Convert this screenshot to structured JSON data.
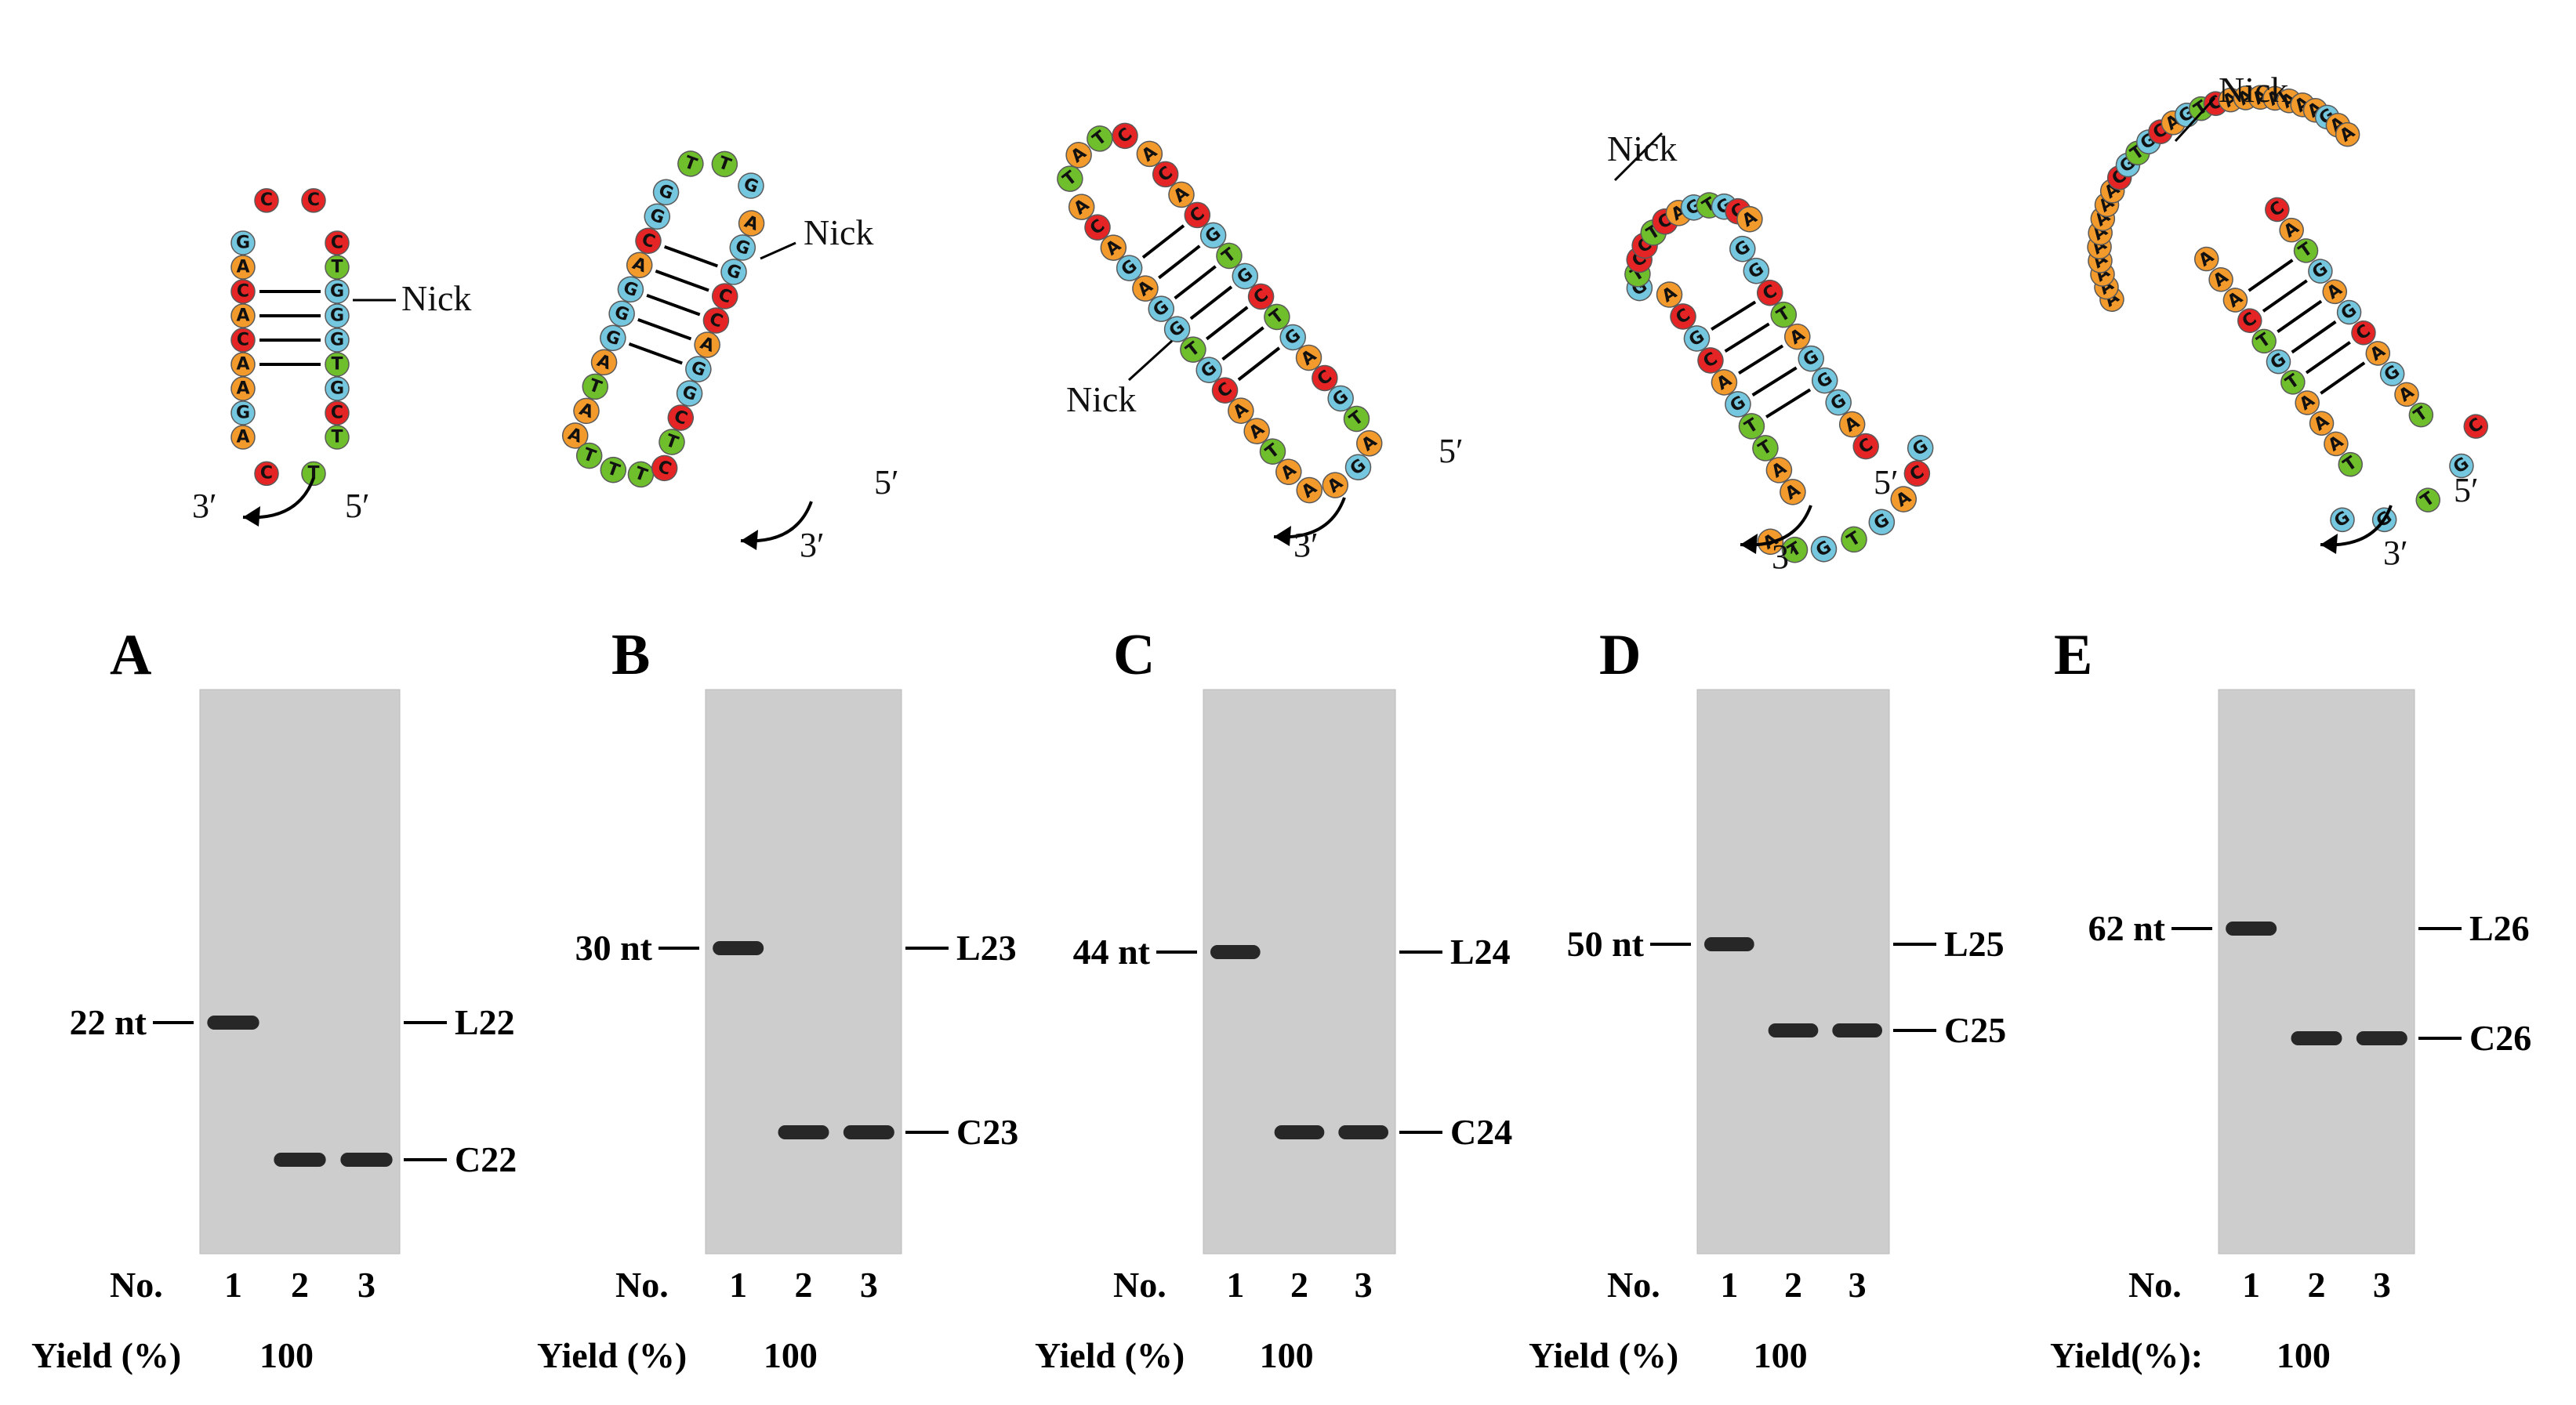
{
  "labels": {
    "nick": "Nick",
    "five_prime": "5′",
    "three_prime": "3′",
    "lane_header": "No.",
    "lanes": [
      "1",
      "2",
      "3"
    ],
    "yield_value": "100"
  },
  "colors": {
    "A": "#f39a2c",
    "C": "#e42425",
    "G": "#74c7de",
    "T": "#6fbf2c",
    "gel_background": "#cdcdcd",
    "band": "#101010"
  },
  "panels": [
    {
      "letter": "A",
      "marker": "22 nt",
      "linear": "L22",
      "circular": "C22",
      "yield_label": "Yield (%)",
      "hairpin": {
        "left_strand": [
          "G",
          "A",
          "C",
          "A",
          "C",
          "A",
          "A",
          "G",
          "A"
        ],
        "right_strand": [
          "C",
          "T",
          "G",
          "G",
          "G",
          "T",
          "G",
          "C",
          "T"
        ],
        "loop": [
          "C",
          "C"
        ],
        "tail": [
          "C",
          "T"
        ]
      }
    },
    {
      "letter": "B",
      "marker": "30 nt",
      "linear": "L23",
      "circular": "C23",
      "yield_label": "Yield (%)",
      "hairpin": {
        "left_strand": [
          "G",
          "G",
          "C",
          "A",
          "G",
          "G",
          "G",
          "A",
          "T",
          "A"
        ],
        "right_strand": [
          "A",
          "G",
          "G",
          "C",
          "C",
          "A",
          "G",
          "G",
          "C",
          "T"
        ],
        "loop": [
          "T",
          "T",
          "G"
        ],
        "tail": [
          "A",
          "T",
          "T",
          "T",
          "C"
        ]
      }
    },
    {
      "letter": "C",
      "marker": "44 nt",
      "linear": "L24",
      "circular": "C24",
      "yield_label": "Yield (%)",
      "hairpin": {
        "left_strand": [
          "A",
          "C",
          "A",
          "G",
          "A",
          "G",
          "G",
          "T",
          "G",
          "C",
          "A",
          "A",
          "T",
          "A"
        ],
        "right_strand": [
          "A",
          "C",
          "A",
          "C",
          "G",
          "T",
          "G",
          "C",
          "T",
          "G",
          "A",
          "C",
          "G",
          "T"
        ],
        "loop": [
          "T",
          "A",
          "T",
          "C"
        ],
        "tail": [
          "A",
          "A",
          "G",
          "A"
        ]
      }
    },
    {
      "letter": "D",
      "marker": "50 nt",
      "linear": "L25",
      "circular": "C25",
      "yield_label": "Yield (%)",
      "hairpin": {
        "left_strand": [
          "A",
          "C",
          "G",
          "C",
          "A",
          "G",
          "T",
          "T",
          "A",
          "A"
        ],
        "right_strand": [
          "G",
          "G",
          "C",
          "T",
          "A",
          "G",
          "G",
          "G",
          "A",
          "C"
        ],
        "loop": [
          "G",
          "T",
          "C",
          "C",
          "T",
          "C",
          "A",
          "G",
          "T",
          "G",
          "C",
          "A"
        ],
        "tail": [
          "A",
          "T",
          "G",
          "T",
          "G",
          "A",
          "C",
          "G"
        ]
      }
    },
    {
      "letter": "E",
      "marker": "62 nt",
      "linear": "L26",
      "circular": "C26",
      "yield_label": "Yield(%):",
      "hairpin": {
        "left_strand": [
          "A",
          "A",
          "A",
          "C",
          "T",
          "G",
          "T",
          "A",
          "A",
          "A",
          "T"
        ],
        "right_strand": [
          "C",
          "A",
          "T",
          "G",
          "A",
          "G",
          "C",
          "A",
          "G",
          "A",
          "T"
        ],
        "loop": [
          "A",
          "A",
          "A",
          "A",
          "A",
          "A",
          "A",
          "A",
          "A",
          "C",
          "G",
          "T",
          "G",
          "C",
          "A",
          "G",
          "T",
          "C",
          "A",
          "A",
          "A",
          "A",
          "A",
          "A",
          "A",
          "G",
          "A",
          "A"
        ],
        "tail": [
          "G",
          "G",
          "T",
          "G",
          "C"
        ]
      }
    }
  ]
}
